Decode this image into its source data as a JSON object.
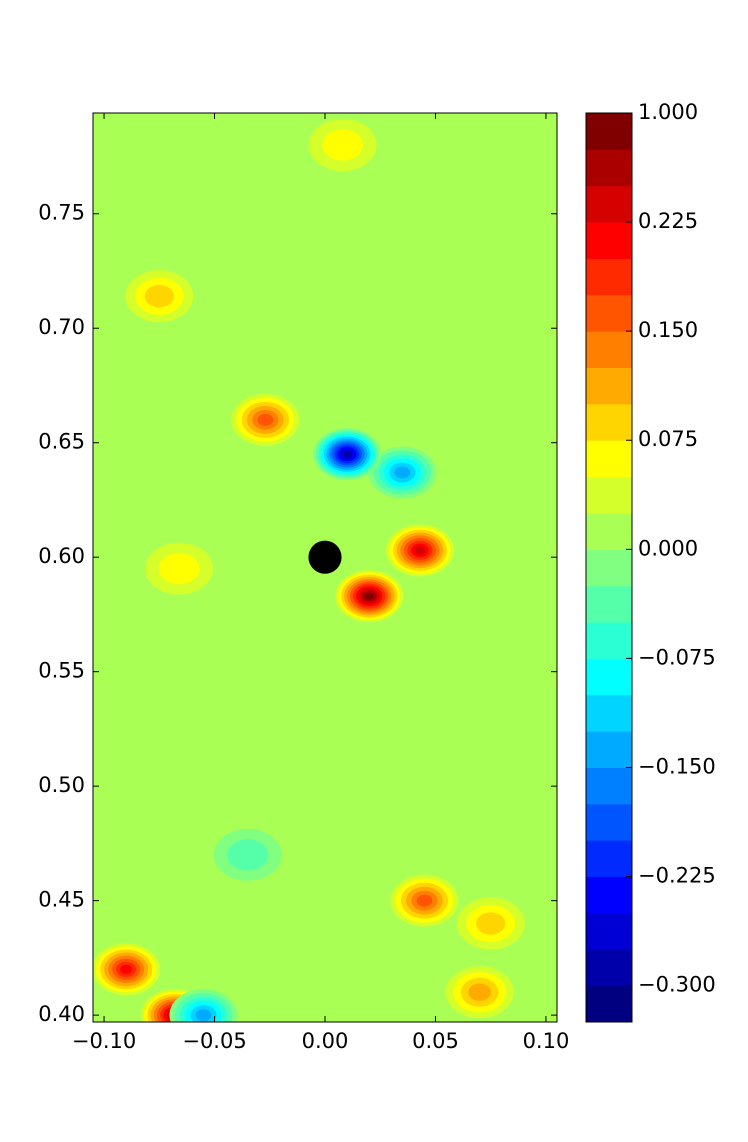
{
  "chart_data": {
    "type": "contourf",
    "xlim": [
      -0.105,
      0.105
    ],
    "ylim": [
      0.397,
      0.794
    ],
    "xticks": [
      {
        "value": -0.1,
        "label": "−0.10"
      },
      {
        "value": -0.05,
        "label": "−0.05"
      },
      {
        "value": 0,
        "label": "0.00"
      },
      0.05,
      {
        "value": 0.1,
        "label": "0.10"
      }
    ],
    "yticks": [
      {
        "value": 0.4,
        "label": "0.40"
      },
      0.45,
      {
        "value": 0.5,
        "label": "0.50"
      },
      0.55,
      {
        "value": 0.6,
        "label": "0.60"
      },
      0.65,
      {
        "value": 0.7,
        "label": "0.70"
      },
      0.75
    ],
    "levels": [
      -0.325,
      -0.3,
      -0.275,
      -0.25,
      -0.225,
      -0.2,
      -0.175,
      -0.15,
      -0.125,
      -0.1,
      -0.075,
      -0.05,
      -0.025,
      0,
      0.025,
      0.05,
      0.075,
      0.1,
      0.125,
      0.15,
      0.175,
      0.2,
      0.225,
      0.25,
      0.275,
      1.0
    ],
    "colorbar_ticks": [
      {
        "value": -0.3,
        "label": "−0.300"
      },
      {
        "value": -0.225,
        "label": "−0.225"
      },
      {
        "value": -0.15,
        "label": "−0.150"
      },
      {
        "value": -0.075,
        "label": "−0.075"
      },
      {
        "value": 0,
        "label": "0.000"
      },
      {
        "value": 0.075,
        "label": "0.075"
      },
      {
        "value": 0.15,
        "label": "0.150"
      },
      {
        "value": 0.225,
        "label": "0.225"
      },
      {
        "value": 1.0,
        "label": "1.000"
      }
    ],
    "background_value": 0.01,
    "obstacle": {
      "x": 0,
      "y": 0.6,
      "r": 0.0075
    },
    "features": {
      "x": [
        -0.027,
        0.035,
        0.045,
        -0.075,
        -0.068,
        -0.09,
        0.043,
        0.02,
        0.01,
        0.07,
        0.008,
        -0.066,
        -0.035,
        -0.055,
        0.075
      ],
      "y": [
        0.66,
        0.637,
        0.45,
        0.714,
        0.4,
        0.42,
        0.603,
        0.583,
        0.645,
        0.41,
        0.78,
        0.595,
        0.47,
        0.4,
        0.44
      ],
      "values": [
        0.15,
        -0.15,
        0.15,
        0.075,
        0.25,
        0.2,
        0.225,
        0.3,
        -0.3,
        0.1,
        0.05,
        0.05,
        -0.05,
        -0.15,
        0.075
      ]
    }
  }
}
